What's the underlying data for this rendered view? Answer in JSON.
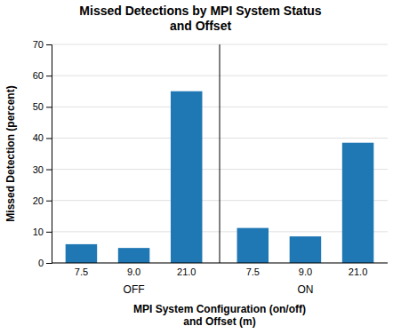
{
  "chart_data": {
    "type": "bar",
    "title": "Missed Detections by MPI System Status\nand Offset",
    "xlabel": "MPI System Configuration (on/off)\nand Offset (m)",
    "ylabel": "Missed Detection (percent)",
    "categories": [
      "7.5",
      "9.0",
      "21.0"
    ],
    "series": [
      {
        "name": "OFF",
        "values": [
          6.0,
          4.8,
          55.0
        ]
      },
      {
        "name": "ON",
        "values": [
          11.2,
          8.5,
          38.5
        ]
      }
    ],
    "ylim": [
      0,
      70
    ],
    "yticks": [
      0,
      10,
      20,
      30,
      40,
      50,
      60,
      70
    ],
    "grid": true
  }
}
